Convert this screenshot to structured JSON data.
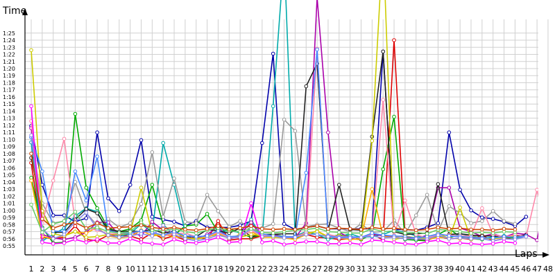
{
  "chart_data": {
    "type": "line",
    "xlabel": "Laps",
    "ylabel": "Time",
    "grid": true,
    "legend": "none",
    "x_range": [
      1,
      48
    ],
    "y_range_seconds": [
      55,
      85
    ],
    "y_ticks": [
      "0:55",
      "0:56",
      "0:57",
      "0:58",
      "0:59",
      "1:00",
      "1:01",
      "1:02",
      "1:03",
      "1:04",
      "1:05",
      "1:06",
      "1:07",
      "1:08",
      "1:09",
      "1:10",
      "1:11",
      "1:12",
      "1:13",
      "1:14",
      "1:15",
      "1:16",
      "1:17",
      "1:18",
      "1:19",
      "1:20",
      "1:21",
      "1:22",
      "1:23",
      "1:24",
      "1:25"
    ],
    "x_ticks": [
      "1",
      "2",
      "3",
      "4",
      "5",
      "6",
      "7",
      "8",
      "9",
      "10",
      "11",
      "12",
      "13",
      "14",
      "15",
      "16",
      "17",
      "18",
      "19",
      "20",
      "21",
      "22",
      "23",
      "24",
      "25",
      "26",
      "27",
      "28",
      "29",
      "30",
      "31",
      "32",
      "33",
      "34",
      "35",
      "36",
      "37",
      "38",
      "39",
      "40",
      "41",
      "42",
      "43",
      "44",
      "45",
      "46",
      "47",
      "48"
    ],
    "series": [
      {
        "color": "#0000aa",
        "values": [
          71.9,
          63.6,
          59.3,
          59.3,
          58.4,
          58.9,
          71.0,
          61.7,
          59.9,
          63.6,
          69.9,
          59.1,
          58.7,
          58.4,
          57.8,
          58.5,
          57.6,
          57.6,
          57.6,
          57.9,
          58.5,
          69.5,
          82.1,
          58.1,
          57.3,
          57.6,
          57.8,
          57.4,
          57.4,
          57.4,
          57.4,
          57.4,
          82.4,
          57.3,
          57.3,
          57.2,
          57.6,
          58.2,
          71.0,
          62.9,
          60.0,
          59.0,
          58.8,
          58.4,
          57.8,
          59.1,
          null,
          null
        ]
      },
      {
        "color": "#dd0000",
        "values": [
          66.7,
          56.2,
          56.0,
          56.2,
          57.8,
          55.9,
          55.7,
          56.5,
          56.5,
          56.4,
          55.9,
          56.8,
          56.0,
          56.4,
          55.8,
          56.3,
          55.9,
          58.5,
          55.8,
          56.0,
          56.0,
          56.4,
          56.2,
          56.2,
          56.0,
          56.6,
          56.2,
          56.1,
          55.9,
          56.0,
          55.9,
          56.7,
          55.8,
          84.0,
          56.2,
          55.9,
          55.8,
          56.3,
          56.0,
          56.1,
          55.9,
          56.5,
          55.7,
          56.0,
          56.2,
          56.4,
          null,
          null
        ]
      },
      {
        "color": "#00aa00",
        "values": [
          64.6,
          57.6,
          55.4,
          55.5,
          73.6,
          63.2,
          60.3,
          57.5,
          57.0,
          57.4,
          58.6,
          63.6,
          58.0,
          56.5,
          57.8,
          58.0,
          59.5,
          56.9,
          57.4,
          56.8,
          56.2,
          56.5,
          56.6,
          56.3,
          56.0,
          56.9,
          56.6,
          56.3,
          56.5,
          56.4,
          55.9,
          56.6,
          65.8,
          73.2,
          55.9,
          55.8,
          55.7,
          56.6,
          57.4,
          56.3,
          56.0,
          55.9,
          56.3,
          56.2,
          56.1,
          56.4,
          null,
          null
        ]
      },
      {
        "color": "#00aaaa",
        "values": [
          69.6,
          55.7,
          56.6,
          57.5,
          59.2,
          60.3,
          59.8,
          56.8,
          56.4,
          56.7,
          58.1,
          56.9,
          69.5,
          63.6,
          56.9,
          56.0,
          56.4,
          57.1,
          57.1,
          56.9,
          58.7,
          56.2,
          74.7,
          96.0,
          56.4,
          57.0,
          56.6,
          55.9,
          56.3,
          56.7,
          56.2,
          56.3,
          56.6,
          57.2,
          56.9,
          56.4,
          56.1,
          56.3,
          56.1,
          56.7,
          56.4,
          56.1,
          56.2,
          56.4,
          56.2,
          56.3,
          null,
          null
        ]
      },
      {
        "color": "#aa00aa",
        "values": [
          71.6,
          56.6,
          56.1,
          55.9,
          56.2,
          56.9,
          58.3,
          58.3,
          56.5,
          57.0,
          56.4,
          58.4,
          57.2,
          56.3,
          56.4,
          55.9,
          56.6,
          57.7,
          55.9,
          56.6,
          58.3,
          56.2,
          56.6,
          56.2,
          56.1,
          58.2,
          90.0,
          71.0,
          56.9,
          56.1,
          56.2,
          56.7,
          56.4,
          56.3,
          56.4,
          56.0,
          56.5,
          63.2,
          63.2,
          57.5,
          57.0,
          56.3,
          56.7,
          56.2,
          56.8,
          56.6,
          55.8,
          63.6
        ]
      },
      {
        "color": "#999999",
        "values": [
          70.3,
          61.0,
          58.2,
          58.5,
          64.0,
          59.6,
          57.9,
          58.8,
          57.6,
          58.2,
          60.9,
          68.2,
          59.1,
          64.5,
          58.4,
          58.2,
          62.2,
          59.9,
          57.7,
          58.5,
          57.1,
          57.5,
          58.1,
          72.8,
          71.2,
          57.7,
          58.0,
          58.1,
          57.5,
          57.0,
          58.1,
          56.9,
          57.0,
          58.6,
          56.7,
          59.3,
          62.2,
          57.0,
          60.6,
          59.6,
          58.2,
          58.5,
          59.9,
          58.5,
          58.1,
          null,
          null,
          null
        ]
      },
      {
        "color": "#222222",
        "values": [
          67.4,
          59.9,
          56.9,
          56.9,
          58.7,
          60.2,
          59.6,
          57.3,
          57.0,
          57.1,
          57.0,
          57.3,
          56.8,
          57.1,
          56.3,
          56.3,
          57.3,
          57.1,
          56.8,
          57.5,
          56.3,
          56.6,
          56.6,
          56.7,
          56.7,
          77.5,
          80.7,
          57.2,
          63.6,
          57.3,
          57.2,
          70.4,
          82.4,
          57.0,
          56.6,
          56.7,
          56.8,
          63.7,
          56.6,
          56.7,
          56.5,
          56.4,
          56.4,
          56.3,
          56.4,
          56.5,
          null,
          null
        ]
      },
      {
        "color": "#ffaa00",
        "values": [
          64.2,
          56.3,
          56.0,
          56.5,
          57.0,
          56.8,
          57.6,
          56.4,
          56.1,
          56.3,
          57.2,
          56.4,
          56.6,
          56.3,
          56.1,
          56.0,
          56.2,
          56.8,
          56.0,
          56.6,
          57.0,
          56.2,
          56.2,
          56.1,
          55.9,
          56.6,
          57.1,
          56.3,
          56.1,
          55.9,
          56.0,
          63.0,
          56.3,
          56.2,
          56.4,
          56.1,
          55.9,
          56.2,
          56.1,
          56.0,
          56.3,
          56.1,
          56.0,
          56.2,
          56.4,
          null,
          null,
          null
        ]
      },
      {
        "color": "#cccc00",
        "values": [
          82.6,
          59.9,
          56.7,
          56.4,
          57.0,
          56.2,
          56.3,
          56.6,
          56.6,
          56.8,
          63.2,
          56.7,
          56.3,
          56.9,
          56.2,
          55.9,
          56.3,
          56.6,
          56.1,
          56.2,
          56.6,
          56.4,
          56.2,
          56.2,
          56.3,
          56.8,
          57.0,
          56.3,
          56.4,
          56.3,
          56.1,
          69.8,
          98.0,
          55.9,
          56.2,
          56.2,
          56.0,
          56.8,
          56.0,
          60.4,
          55.9,
          56.1,
          56.0,
          56.2,
          56.4,
          null,
          null,
          null
        ]
      },
      {
        "color": "#ff88aa",
        "values": [
          72.6,
          58.2,
          64.2,
          70.1,
          58.3,
          57.5,
          57.2,
          56.7,
          56.7,
          56.9,
          57.0,
          56.9,
          56.4,
          56.7,
          56.8,
          56.3,
          56.3,
          56.9,
          56.2,
          56.3,
          57.1,
          56.5,
          56.4,
          56.3,
          56.2,
          56.9,
          82.8,
          56.6,
          56.3,
          56.3,
          56.1,
          56.6,
          75.6,
          56.5,
          61.4,
          56.6,
          56.1,
          56.6,
          56.5,
          56.4,
          56.4,
          60.3,
          56.6,
          56.2,
          56.6,
          56.3,
          62.9,
          56.7
        ]
      },
      {
        "color": "#4488ff",
        "values": [
          70.3,
          65.5,
          57.1,
          57.0,
          65.5,
          61.4,
          67.6,
          57.2,
          56.8,
          56.8,
          57.1,
          56.9,
          56.5,
          57.0,
          56.4,
          56.3,
          56.4,
          57.1,
          56.3,
          56.4,
          57.4,
          56.7,
          56.4,
          56.3,
          56.3,
          65.3,
          82.7,
          56.4,
          56.2,
          56.3,
          56.2,
          56.8,
          56.5,
          56.4,
          56.3,
          56.1,
          56.3,
          56.7,
          56.4,
          56.3,
          56.2,
          56.1,
          56.1,
          56.3,
          56.2,
          56.4,
          null,
          null
        ]
      },
      {
        "color": "#8888ee",
        "values": [
          70.6,
          57.4,
          56.0,
          56.6,
          58.4,
          59.7,
          57.4,
          56.5,
          56.2,
          56.4,
          56.7,
          56.4,
          57.9,
          56.6,
          56.0,
          55.7,
          56.0,
          56.5,
          56.1,
          56.2,
          57.5,
          56.3,
          56.4,
          56.1,
          56.2,
          56.6,
          56.6,
          56.3,
          56.1,
          56.1,
          56.2,
          56.4,
          56.1,
          56.2,
          56.0,
          56.0,
          55.9,
          56.5,
          56.0,
          56.1,
          56.0,
          56.0,
          55.7,
          56.0,
          55.9,
          56.3,
          null,
          null
        ]
      },
      {
        "color": "#ff00ff",
        "values": [
          74.7,
          55.5,
          55.3,
          55.4,
          55.9,
          55.5,
          55.9,
          55.4,
          55.4,
          56.0,
          55.5,
          55.3,
          55.2,
          55.9,
          55.5,
          55.4,
          55.7,
          56.2,
          55.5,
          55.6,
          61.0,
          55.5,
          55.7,
          55.2,
          55.4,
          55.6,
          55.6,
          55.3,
          55.3,
          55.4,
          55.2,
          55.8,
          55.7,
          55.5,
          55.3,
          55.2,
          55.6,
          55.8,
          55.3,
          55.4,
          55.3,
          55.2,
          55.3,
          55.6,
          55.4,
          null,
          null,
          null
        ]
      },
      {
        "color": "#66cc66",
        "values": [
          60.8,
          56.9,
          58.1,
          58.5,
          59.8,
          57.4,
          57.6,
          57.0,
          56.8,
          57.0,
          58.3,
          57.2,
          57.1,
          57.4,
          57.0,
          56.8,
          57.2,
          57.5,
          57.1,
          57.0,
          57.4,
          56.9,
          56.8,
          57.0,
          57.2,
          57.3,
          57.5,
          57.0,
          56.9,
          56.8,
          56.8,
          57.4,
          57.0,
          57.1,
          56.8,
          56.9,
          56.7,
          57.3,
          57.2,
          57.0,
          56.8,
          56.9,
          56.8,
          57.0,
          56.9,
          null,
          null,
          null
        ]
      },
      {
        "color": "#cc4400",
        "values": [
          68.0,
          58.8,
          57.5,
          58.0,
          58.3,
          57.5,
          58.2,
          57.5,
          57.6,
          57.7,
          57.9,
          57.6,
          57.4,
          57.6,
          57.3,
          57.2,
          57.4,
          57.8,
          57.3,
          57.5,
          57.8,
          57.4,
          57.3,
          57.4,
          57.3,
          57.6,
          57.8,
          57.4,
          57.5,
          57.4,
          57.3,
          57.6,
          57.4,
          57.5,
          57.3,
          57.2,
          57.3,
          57.6,
          57.4,
          57.5,
          57.3,
          57.3,
          57.2,
          57.4,
          57.3,
          null,
          null,
          null
        ]
      }
    ]
  }
}
